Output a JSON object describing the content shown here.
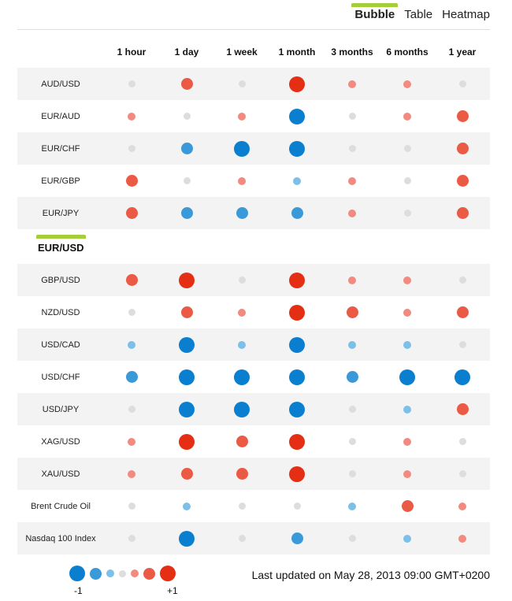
{
  "tabs": [
    {
      "label": "Bubble",
      "active": true
    },
    {
      "label": "Table",
      "active": false
    },
    {
      "label": "Heatmap",
      "active": false
    }
  ],
  "columns": [
    "1 hour",
    "1 day",
    "1 week",
    "1 month",
    "3 months",
    "6 months",
    "1 year"
  ],
  "base_currency": "EUR/USD",
  "colors": {
    "neutral": "#dddddd",
    "positive_light": "#f28a80",
    "positive_mid": "#ea5a45",
    "positive_strong": "#e42f14",
    "negative_light": "#7cc0e8",
    "negative_mid": "#3a9ad9",
    "negative_strong": "#0a7fcf"
  },
  "rows_top": [
    {
      "pair": "AUD/USD",
      "values": [
        0,
        0.6,
        0,
        0.9,
        0.3,
        0.3,
        0
      ]
    },
    {
      "pair": "EUR/AUD",
      "values": [
        0.3,
        0,
        0.3,
        -0.9,
        0,
        0.3,
        0.6
      ]
    },
    {
      "pair": "EUR/CHF",
      "values": [
        0,
        -0.6,
        -0.9,
        -0.9,
        0,
        0,
        0.6
      ]
    },
    {
      "pair": "EUR/GBP",
      "values": [
        0.6,
        0,
        0.3,
        -0.3,
        0.3,
        0,
        0.6
      ]
    },
    {
      "pair": "EUR/JPY",
      "values": [
        0.6,
        -0.6,
        -0.6,
        -0.6,
        0.3,
        0,
        0.6
      ]
    }
  ],
  "rows_bottom": [
    {
      "pair": "GBP/USD",
      "values": [
        0.6,
        0.9,
        0,
        0.9,
        0.3,
        0.3,
        0
      ]
    },
    {
      "pair": "NZD/USD",
      "values": [
        0,
        0.6,
        0.3,
        0.9,
        0.6,
        0.3,
        0.6
      ]
    },
    {
      "pair": "USD/CAD",
      "values": [
        -0.3,
        -0.9,
        -0.3,
        -0.9,
        -0.3,
        -0.3,
        0
      ]
    },
    {
      "pair": "USD/CHF",
      "values": [
        -0.6,
        -0.9,
        -0.9,
        -0.9,
        -0.6,
        -0.9,
        -0.9
      ]
    },
    {
      "pair": "USD/JPY",
      "values": [
        0,
        -0.9,
        -0.9,
        -0.9,
        0,
        -0.3,
        0.6
      ]
    },
    {
      "pair": "XAG/USD",
      "values": [
        0.3,
        0.9,
        0.6,
        0.9,
        0,
        0.3,
        0
      ]
    },
    {
      "pair": "XAU/USD",
      "values": [
        0.3,
        0.6,
        0.6,
        0.9,
        0,
        0.3,
        0
      ]
    },
    {
      "pair": "Brent Crude Oil",
      "values": [
        0,
        -0.3,
        0,
        0,
        -0.3,
        0.6,
        0.3
      ]
    },
    {
      "pair": "Nasdaq 100 Index",
      "values": [
        0,
        -0.9,
        0,
        -0.6,
        0,
        -0.3,
        0.3
      ]
    }
  ],
  "legend": {
    "min_label": "-1",
    "max_label": "+1",
    "scale": [
      -0.9,
      -0.6,
      -0.3,
      0,
      0.3,
      0.6,
      0.9
    ]
  },
  "last_updated": "Last updated on May 28, 2013 09:00 GMT+0200"
}
